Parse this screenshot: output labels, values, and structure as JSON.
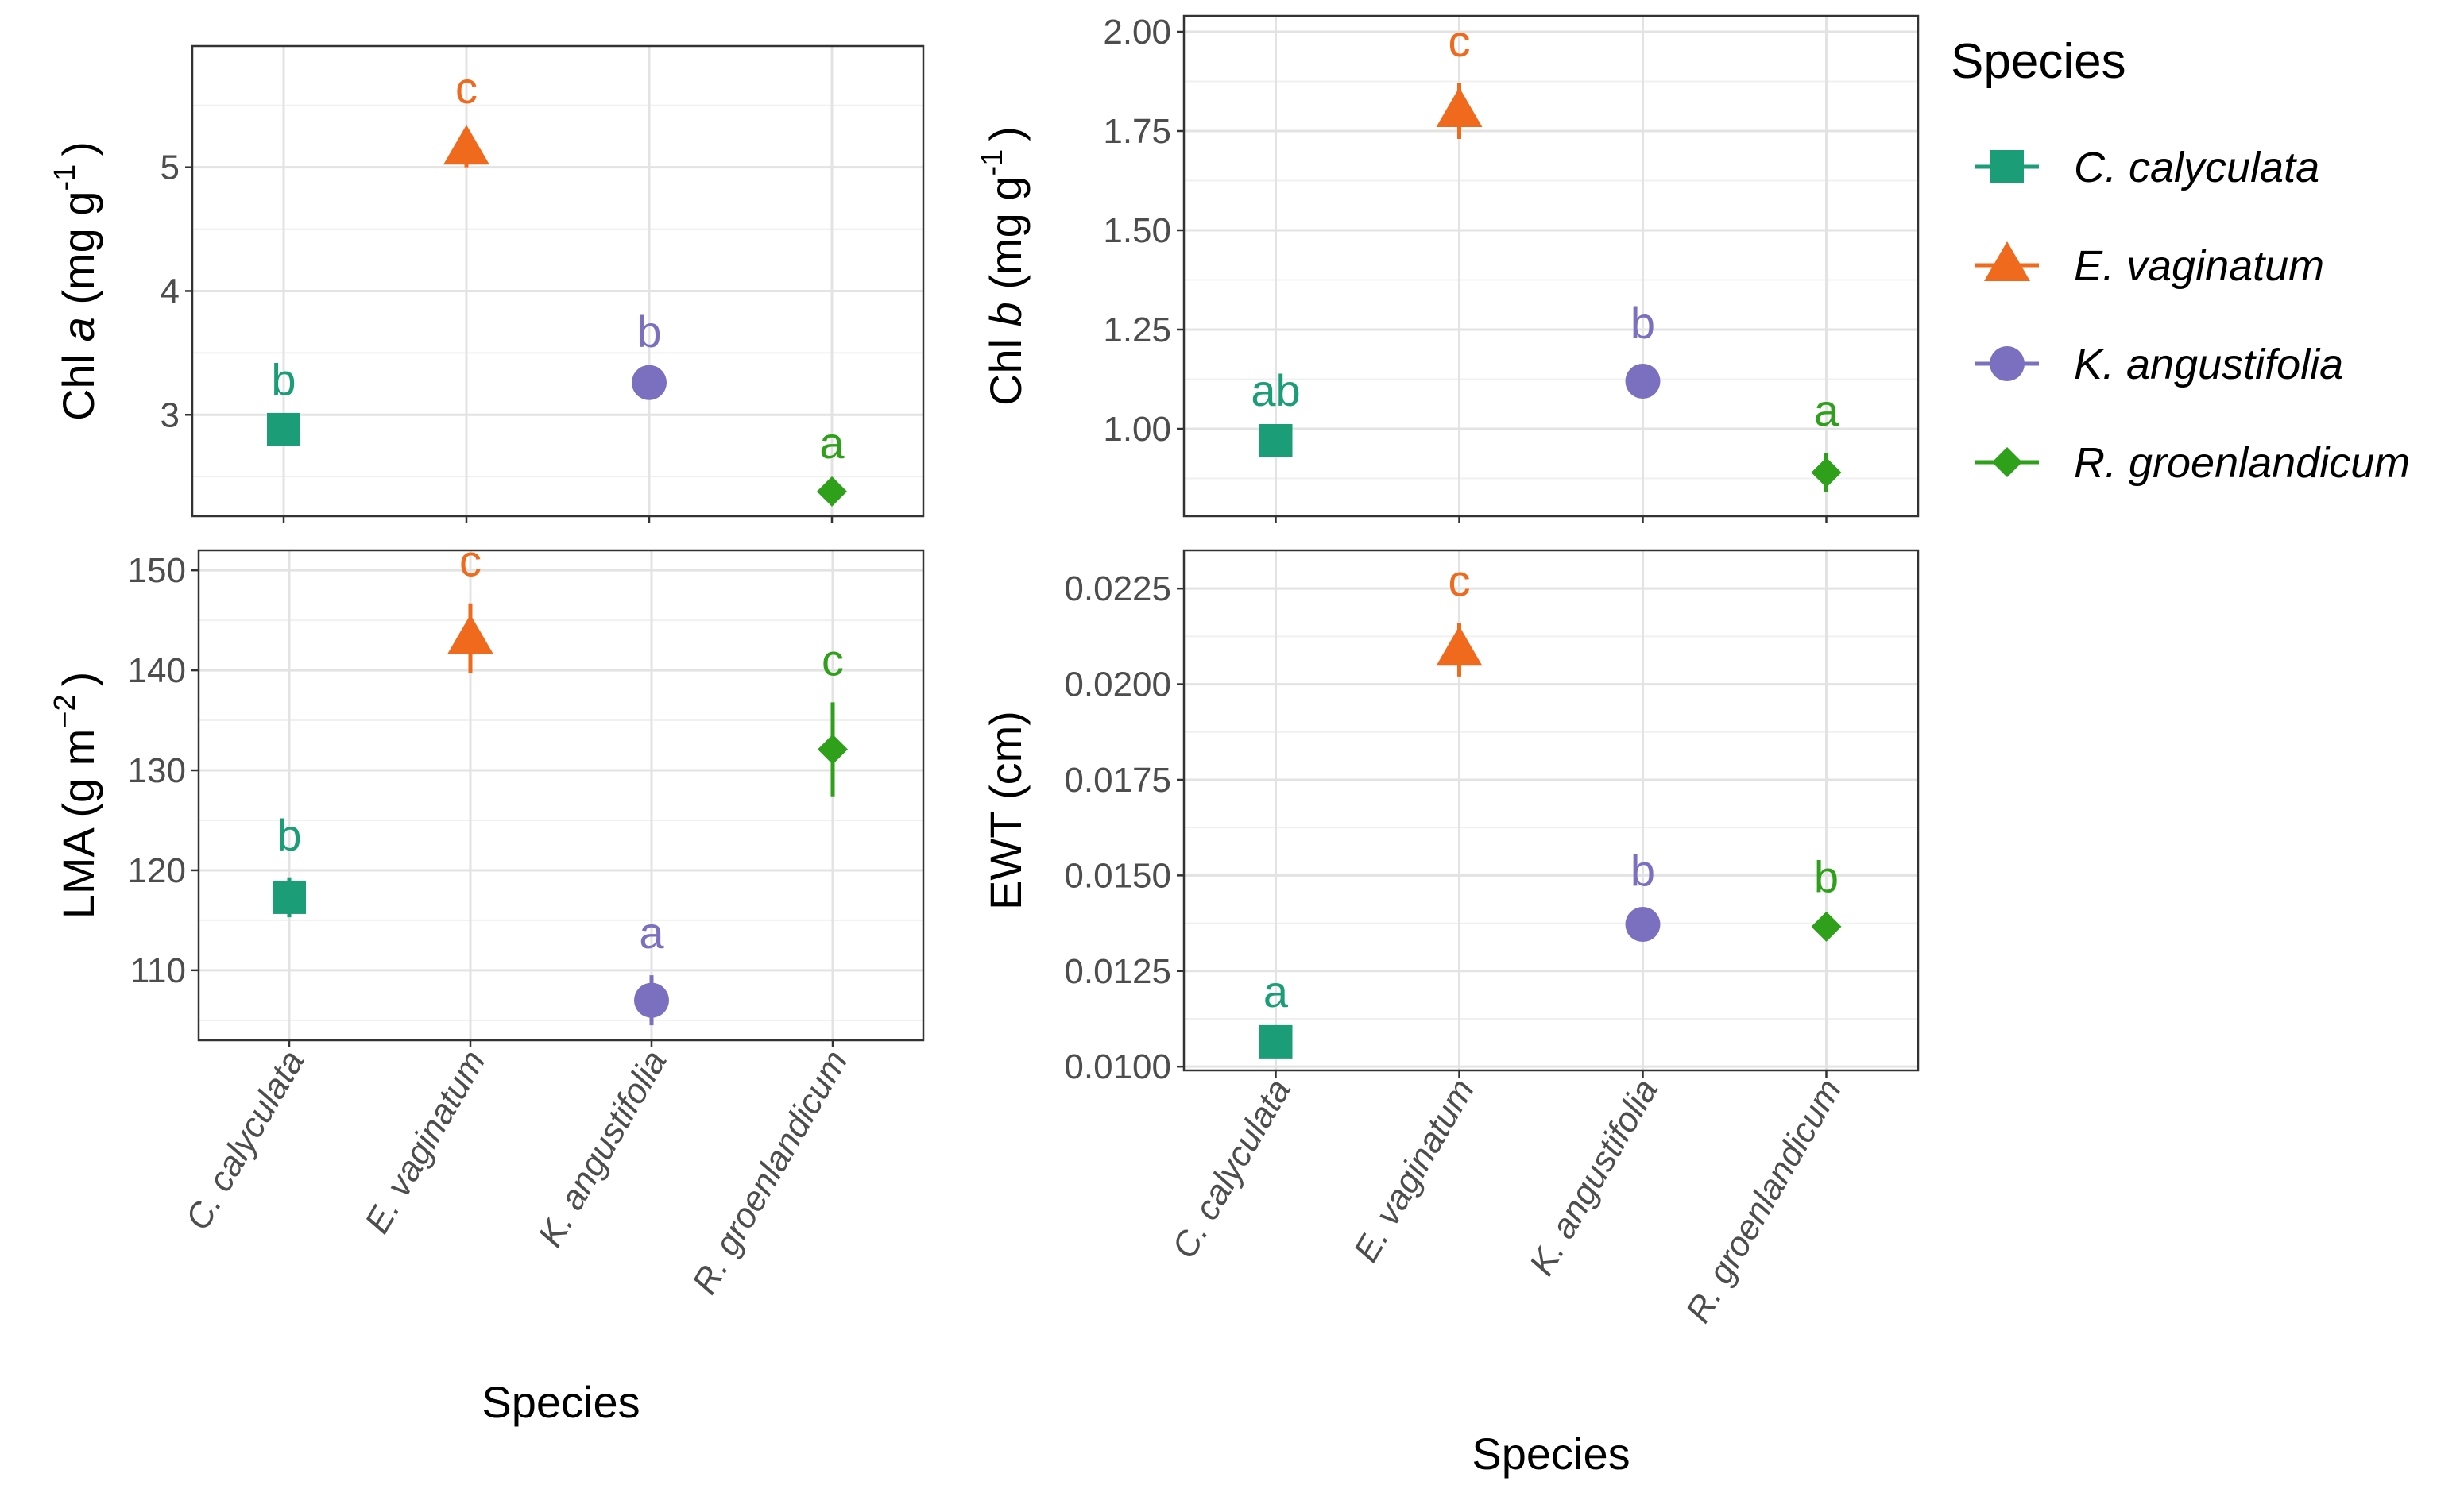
{
  "species": [
    {
      "name": "C. calyculata",
      "color": "#1b9e77",
      "shape": "square"
    },
    {
      "name": "E. vaginatum",
      "color": "#f06a1d",
      "shape": "triangle"
    },
    {
      "name": "K. angustifolia",
      "color": "#7b70c0",
      "shape": "circle"
    },
    {
      "name": "R. groenlandicum",
      "color": "#2ea01a",
      "shape": "diamond"
    }
  ],
  "legend": {
    "title": "Species",
    "items": [
      "C. calyculata",
      "E. vaginatum",
      "K. angustifolia",
      "R. groenlandicum"
    ]
  },
  "chart_data": [
    {
      "id": "chl-a",
      "type": "scatter",
      "ylabel_prefix": "Chl ",
      "ylabel_italic": "a",
      "ylabel_unit": " (mg g",
      "ylabel_sup": "-1",
      "ylabel_close": ")",
      "xlabel": "",
      "categories": [
        "C. calyculata",
        "E. vaginatum",
        "K. angustifolia",
        "R. groenlandicum"
      ],
      "values": [
        2.88,
        5.15,
        3.26,
        2.38
      ],
      "errors": [
        0.06,
        0.15,
        0.07,
        0.05
      ],
      "letters": [
        "b",
        "c",
        "b",
        "a"
      ],
      "ylim": [
        2.18,
        5.98
      ],
      "yticks": [
        3,
        4,
        5
      ],
      "ytick_labels": [
        "3",
        "4",
        "5"
      ],
      "show_x_tick_labels": false
    },
    {
      "id": "chl-b",
      "type": "scatter",
      "ylabel_prefix": "Chl ",
      "ylabel_italic": "b",
      "ylabel_unit": " (mg g",
      "ylabel_sup": "-1",
      "ylabel_close": ")",
      "xlabel": "",
      "categories": [
        "C. calyculata",
        "E. vaginatum",
        "K. angustifolia",
        "R. groenlandicum"
      ],
      "values": [
        0.97,
        1.8,
        1.12,
        0.89
      ],
      "errors": [
        0.02,
        0.07,
        0.04,
        0.05
      ],
      "letters": [
        "ab",
        "c",
        "b",
        "a"
      ],
      "ylim": [
        0.78,
        2.04
      ],
      "yticks": [
        1.0,
        1.25,
        1.5,
        1.75,
        2.0
      ],
      "ytick_labels": [
        "1.00",
        "1.25",
        "1.50",
        "1.75",
        "2.00"
      ],
      "show_x_tick_labels": false
    },
    {
      "id": "lma",
      "type": "scatter",
      "ylabel_prefix": "LMA (g m",
      "ylabel_italic": "",
      "ylabel_unit": "",
      "ylabel_sup": "−2",
      "ylabel_close": ")",
      "xlabel": "Species",
      "categories": [
        "C. calyculata",
        "E. vaginatum",
        "K. angustifolia",
        "R. groenlandicum"
      ],
      "values": [
        117.3,
        143.2,
        107.0,
        132.1
      ],
      "errors": [
        2.0,
        3.5,
        2.5,
        4.7
      ],
      "letters": [
        "b",
        "c",
        "a",
        "c"
      ],
      "ylim": [
        103.0,
        152.0
      ],
      "yticks": [
        110,
        120,
        130,
        140,
        150
      ],
      "ytick_labels": [
        "110",
        "120",
        "130",
        "140",
        "150"
      ],
      "show_x_tick_labels": true
    },
    {
      "id": "ewt",
      "type": "scatter",
      "ylabel_prefix": "EWT (cm)",
      "ylabel_italic": "",
      "ylabel_unit": "",
      "ylabel_sup": "",
      "ylabel_close": "",
      "xlabel": "Species",
      "categories": [
        "C. calyculata",
        "E. vaginatum",
        "K. angustifolia",
        "R. groenlandicum"
      ],
      "values": [
        0.01065,
        0.0209,
        0.01372,
        0.01366
      ],
      "errors": [
        0.0002,
        0.0007,
        0.0003,
        0.0002
      ],
      "letters": [
        "a",
        "c",
        "b",
        "b"
      ],
      "ylim": [
        0.0099,
        0.0235
      ],
      "yticks": [
        0.01,
        0.0125,
        0.015,
        0.0175,
        0.02,
        0.0225
      ],
      "ytick_labels": [
        "0.0100",
        "0.0125",
        "0.0150",
        "0.0175",
        "0.0200",
        "0.0225"
      ],
      "show_x_tick_labels": true
    }
  ]
}
